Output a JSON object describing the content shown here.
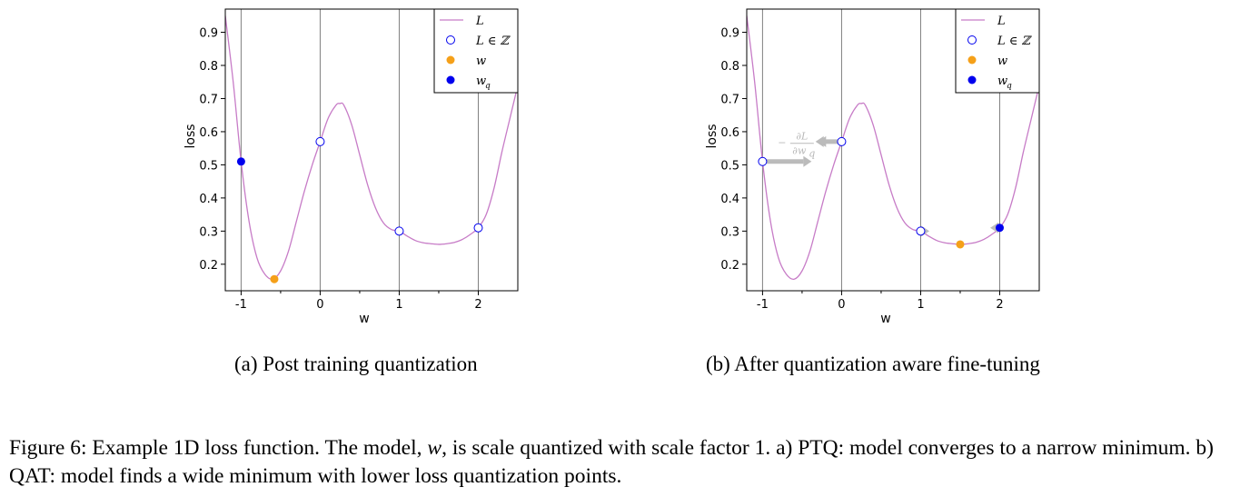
{
  "chart_data": [
    {
      "id": "a",
      "type": "line",
      "title": "",
      "xlabel": "w",
      "ylabel": "loss",
      "xlim": [
        -1.2,
        2.5
      ],
      "ylim": [
        0.12,
        0.97
      ],
      "x_ticks": [
        {
          "value": -1,
          "label": "-1"
        },
        {
          "value": 0,
          "label": "0"
        },
        {
          "value": 1,
          "label": "1"
        },
        {
          "value": 2,
          "label": "2"
        }
      ],
      "x_minor_ticks": [
        -0.5,
        0.5,
        1.5
      ],
      "y_ticks": [
        {
          "value": 0.2,
          "label": "0.2"
        },
        {
          "value": 0.3,
          "label": "0.3"
        },
        {
          "value": 0.4,
          "label": "0.4"
        },
        {
          "value": 0.5,
          "label": "0.5"
        },
        {
          "value": 0.6,
          "label": "0.6"
        },
        {
          "value": 0.7,
          "label": "0.7"
        },
        {
          "value": 0.8,
          "label": "0.8"
        },
        {
          "value": 0.9,
          "label": "0.9"
        }
      ],
      "vlines": [
        -1,
        0,
        1,
        2
      ],
      "curve": {
        "name": "L",
        "x": [
          -1.2,
          -1.1,
          -1.0,
          -0.9,
          -0.8,
          -0.7,
          -0.6,
          -0.5,
          -0.4,
          -0.3,
          -0.2,
          -0.1,
          0.0,
          0.1,
          0.2,
          0.25,
          0.3,
          0.4,
          0.5,
          0.6,
          0.7,
          0.8,
          0.9,
          1.0,
          1.1,
          1.2,
          1.3,
          1.4,
          1.5,
          1.6,
          1.7,
          1.8,
          1.9,
          2.0,
          2.1,
          2.2,
          2.3,
          2.4,
          2.5
        ],
        "y": [
          0.95,
          0.75,
          0.51,
          0.33,
          0.22,
          0.17,
          0.155,
          0.18,
          0.24,
          0.33,
          0.42,
          0.5,
          0.57,
          0.64,
          0.68,
          0.685,
          0.68,
          0.62,
          0.53,
          0.44,
          0.37,
          0.325,
          0.305,
          0.3,
          0.285,
          0.272,
          0.265,
          0.262,
          0.26,
          0.262,
          0.266,
          0.275,
          0.29,
          0.31,
          0.35,
          0.43,
          0.54,
          0.64,
          0.74
        ],
        "color": "#c77cc7"
      },
      "integer_points": [
        {
          "x": 0,
          "y": 0.57
        },
        {
          "x": 1,
          "y": 0.3
        },
        {
          "x": 2,
          "y": 0.31
        }
      ],
      "w_point": {
        "x": -0.58,
        "y": 0.155
      },
      "wq_point": {
        "x": -1,
        "y": 0.51
      },
      "legend": {
        "position": "top-right",
        "entries": [
          {
            "label": "L",
            "marker": "line"
          },
          {
            "label": "L ∈ ℤ",
            "marker": "open-circle"
          },
          {
            "label": "w",
            "marker": "orange-dot"
          },
          {
            "label": "w",
            "sub": "q",
            "marker": "blue-dot"
          }
        ]
      }
    },
    {
      "id": "b",
      "type": "line",
      "title": "",
      "xlabel": "w",
      "ylabel": "loss",
      "xlim": [
        -1.2,
        2.5
      ],
      "ylim": [
        0.12,
        0.97
      ],
      "x_ticks": [
        {
          "value": -1,
          "label": "-1"
        },
        {
          "value": 0,
          "label": "0"
        },
        {
          "value": 1,
          "label": "1"
        },
        {
          "value": 2,
          "label": "2"
        }
      ],
      "x_minor_ticks": [
        -0.5,
        0.5,
        1.5
      ],
      "y_ticks": [
        {
          "value": 0.2,
          "label": "0.2"
        },
        {
          "value": 0.3,
          "label": "0.3"
        },
        {
          "value": 0.4,
          "label": "0.4"
        },
        {
          "value": 0.5,
          "label": "0.5"
        },
        {
          "value": 0.6,
          "label": "0.6"
        },
        {
          "value": 0.7,
          "label": "0.7"
        },
        {
          "value": 0.8,
          "label": "0.8"
        },
        {
          "value": 0.9,
          "label": "0.9"
        }
      ],
      "vlines": [
        -1,
        0,
        1,
        2
      ],
      "curve": {
        "name": "L",
        "x": [
          -1.2,
          -1.1,
          -1.0,
          -0.9,
          -0.8,
          -0.7,
          -0.6,
          -0.5,
          -0.4,
          -0.3,
          -0.2,
          -0.1,
          0.0,
          0.1,
          0.2,
          0.25,
          0.3,
          0.4,
          0.5,
          0.6,
          0.7,
          0.8,
          0.9,
          1.0,
          1.1,
          1.2,
          1.3,
          1.4,
          1.5,
          1.6,
          1.7,
          1.8,
          1.9,
          2.0,
          2.1,
          2.2,
          2.3,
          2.4,
          2.5
        ],
        "y": [
          0.95,
          0.75,
          0.51,
          0.33,
          0.22,
          0.17,
          0.155,
          0.18,
          0.24,
          0.33,
          0.42,
          0.5,
          0.57,
          0.64,
          0.68,
          0.685,
          0.68,
          0.62,
          0.53,
          0.44,
          0.37,
          0.325,
          0.305,
          0.3,
          0.285,
          0.272,
          0.265,
          0.262,
          0.26,
          0.262,
          0.266,
          0.275,
          0.29,
          0.31,
          0.35,
          0.43,
          0.54,
          0.64,
          0.74
        ],
        "color": "#c77cc7"
      },
      "integer_points": [
        {
          "x": -1,
          "y": 0.51
        },
        {
          "x": 0,
          "y": 0.57
        },
        {
          "x": 1,
          "y": 0.3
        }
      ],
      "w_point": {
        "x": 1.5,
        "y": 0.26
      },
      "wq_point": {
        "x": 2,
        "y": 0.31
      },
      "gradient_arrows": [
        {
          "from": [
            -0.95,
            0.51
          ],
          "to": [
            -0.38,
            0.51
          ],
          "width": 5
        },
        {
          "from": [
            -0.22,
            0.57
          ],
          "to": [
            -0.3,
            0.57
          ],
          "width": 5
        },
        {
          "from": [
            -0.04,
            0.57
          ],
          "to": [
            -0.33,
            0.57
          ],
          "width": 5
        },
        {
          "from": [
            1.04,
            0.3
          ],
          "to": [
            1.11,
            0.3
          ],
          "width": 5
        },
        {
          "from": [
            1.96,
            0.31
          ],
          "to": [
            1.88,
            0.31
          ],
          "width": 5
        }
      ],
      "gradient_label": {
        "minus": "−",
        "numerator": "∂L",
        "denominator": "∂w",
        "denominator_sub": "q"
      },
      "legend": {
        "position": "top-right",
        "entries": [
          {
            "label": "L",
            "marker": "line"
          },
          {
            "label": "L ∈ ℤ",
            "marker": "open-circle"
          },
          {
            "label": "w",
            "marker": "orange-dot"
          },
          {
            "label": "w",
            "sub": "q",
            "marker": "blue-dot"
          }
        ]
      }
    }
  ],
  "colors": {
    "curve": "#c77cc7",
    "orange": "#f5a019",
    "blue": "#0000ee",
    "vline": "#808080",
    "arrow": "#bbbbbb"
  },
  "subcaptions": {
    "a": "(a) Post training quantization",
    "b": "(b) After quantization aware fine-tuning"
  },
  "caption": {
    "part1": "Figure 6: Example 1D loss function. The model, ",
    "var": "w",
    "part2": ", is scale quantized with scale factor 1. a) PTQ: model converges to a narrow minimum. b) QAT: model finds a wide minimum with lower loss quantization points."
  }
}
